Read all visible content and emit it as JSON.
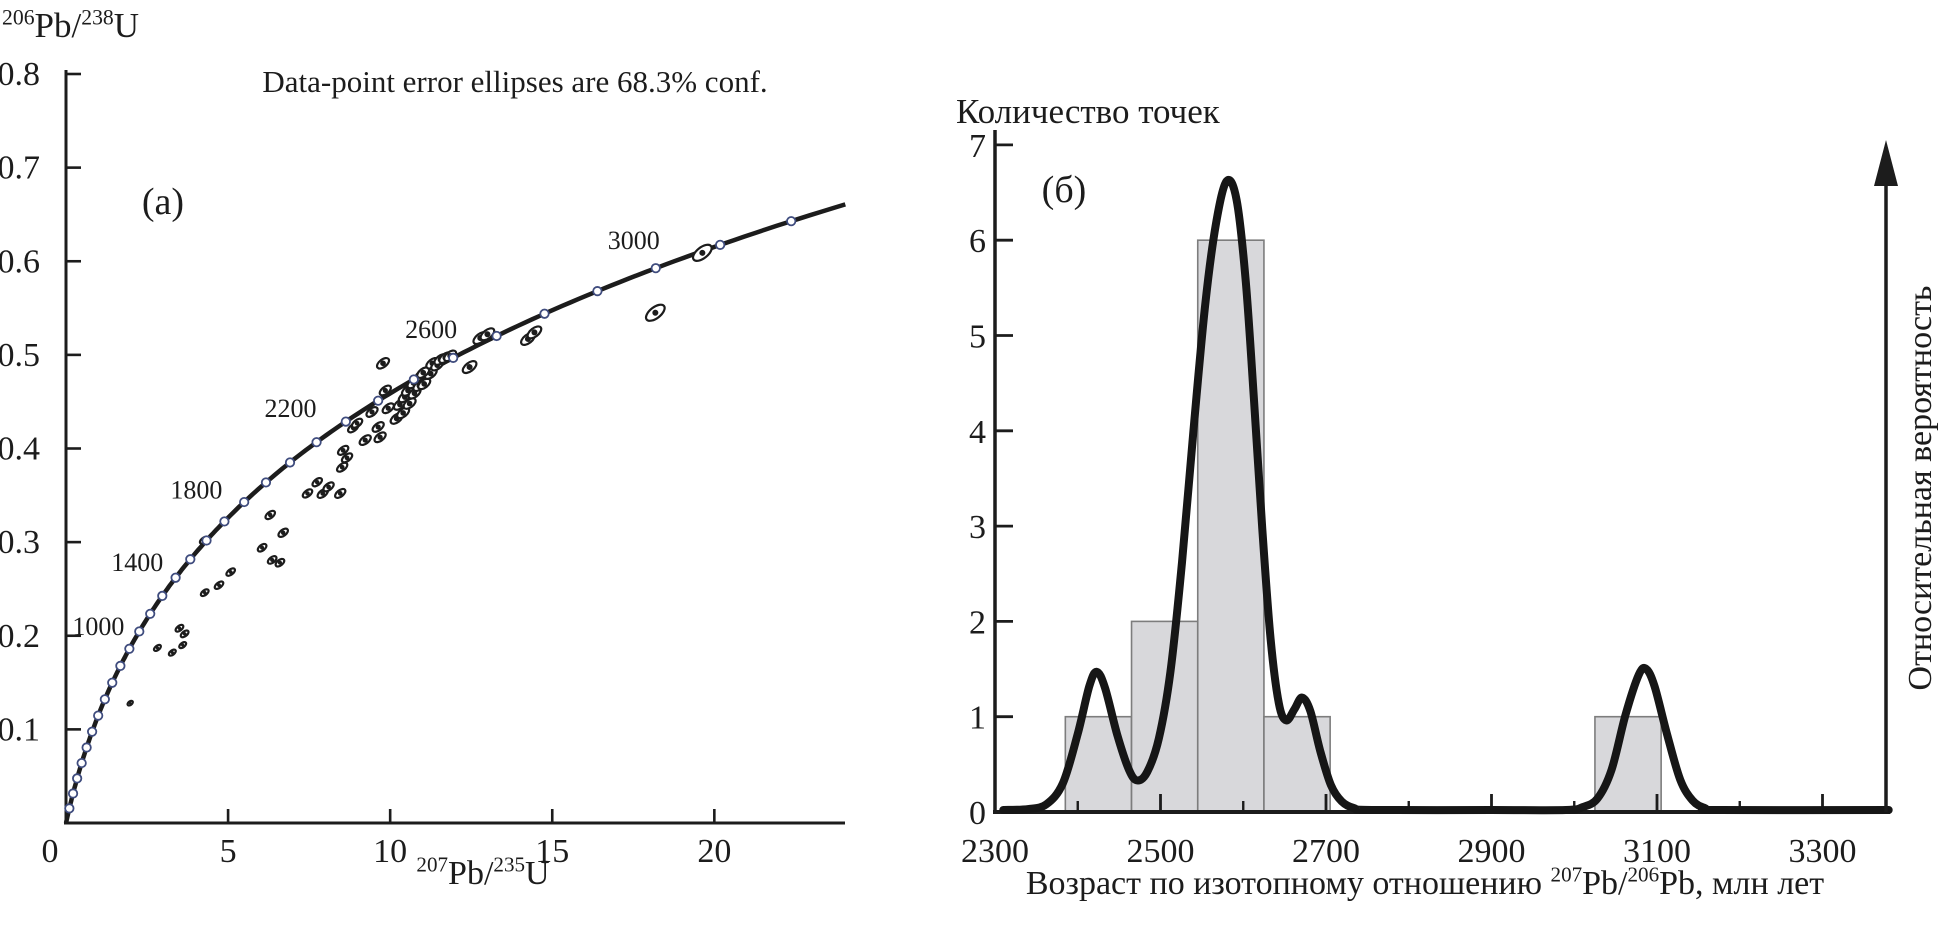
{
  "colors": {
    "ink": "#1c1c1c",
    "bar_fill": "#d8d8db",
    "bar_stroke": "#7d7d7d",
    "density_curve": "#161616",
    "marker_stroke": "#3f4c7e",
    "marker_fill": "#ffffff",
    "ellipse_fill": "#ffffff"
  },
  "chart_data": [
    {
      "type": "scatter",
      "panel_label": "(a)",
      "title": "Data-point error ellipses are 68.3% conf.",
      "ylabel_rich": [
        {
          "sup": "206"
        },
        {
          "t": "Pb/"
        },
        {
          "sup": "238"
        },
        {
          "t": "U"
        }
      ],
      "xlabel_rich": [
        {
          "sup": "207"
        },
        {
          "t": "Pb/"
        },
        {
          "sup": "235"
        },
        {
          "t": "U"
        }
      ],
      "xlim": [
        0,
        24
      ],
      "ylim": [
        0,
        0.8
      ],
      "x_ticks": [
        0,
        5,
        10,
        15,
        20
      ],
      "y_ticks": [
        0.1,
        0.2,
        0.3,
        0.4,
        0.5,
        0.6,
        0.7,
        0.8
      ],
      "concordia": {
        "lambda235_per_Ma": 0.00098485,
        "lambda238_per_Ma": 0.000155125,
        "t_start_Ma": 0,
        "t_end_Ma": 3270,
        "marker_first_Ma": 100,
        "marker_last_Ma": 3200,
        "marker_step_Ma": 100,
        "labeled_ages_Ma": [
          1000,
          1400,
          1800,
          2200,
          2600,
          3000
        ]
      },
      "ellipses_xy": [
        [
          1.98,
          0.128,
          3,
          1.8
        ],
        [
          2.82,
          0.187,
          4,
          2.2
        ],
        [
          3.28,
          0.182,
          4,
          2.2
        ],
        [
          3.6,
          0.19,
          4,
          2.2
        ],
        [
          3.5,
          0.208,
          4.5,
          2.4
        ],
        [
          3.66,
          0.202,
          4.5,
          2.4
        ],
        [
          4.25,
          0.302,
          4.5,
          2.4
        ],
        [
          4.28,
          0.246,
          4.5,
          2.4
        ],
        [
          4.72,
          0.254,
          5,
          2.6
        ],
        [
          5.08,
          0.268,
          5,
          2.6
        ],
        [
          6.05,
          0.294,
          5,
          2.8
        ],
        [
          6.36,
          0.281,
          5,
          2.8
        ],
        [
          6.6,
          0.278,
          5,
          2.8
        ],
        [
          6.3,
          0.329,
          5.5,
          3
        ],
        [
          6.7,
          0.31,
          5.5,
          3
        ],
        [
          7.45,
          0.352,
          5.5,
          3
        ],
        [
          7.75,
          0.364,
          5.5,
          3
        ],
        [
          7.92,
          0.352,
          6,
          3.2
        ],
        [
          8.1,
          0.359,
          6,
          3.2
        ],
        [
          8.46,
          0.352,
          6,
          3.2
        ],
        [
          8.52,
          0.38,
          6,
          3.2
        ],
        [
          8.67,
          0.39,
          6,
          3.2
        ],
        [
          8.55,
          0.398,
          6,
          3.2
        ],
        [
          8.86,
          0.422,
          6,
          3.2
        ],
        [
          8.98,
          0.427,
          6,
          3.2
        ],
        [
          9.23,
          0.409,
          6.5,
          3.5
        ],
        [
          9.44,
          0.439,
          6.5,
          3.5
        ],
        [
          9.63,
          0.423,
          6.5,
          3.5
        ],
        [
          9.69,
          0.412,
          6.5,
          3.5
        ],
        [
          9.85,
          0.462,
          6.5,
          3.5
        ],
        [
          9.94,
          0.443,
          6.5,
          3.5
        ],
        [
          9.78,
          0.491,
          7,
          3.8
        ],
        [
          10.2,
          0.432,
          7,
          3.8
        ],
        [
          10.4,
          0.438,
          7,
          3.8
        ],
        [
          10.3,
          0.447,
          7,
          3.8
        ],
        [
          10.45,
          0.455,
          7,
          3.8
        ],
        [
          10.6,
          0.448,
          7,
          3.8
        ],
        [
          10.55,
          0.462,
          7,
          3.8
        ],
        [
          10.75,
          0.459,
          7,
          3.8
        ],
        [
          10.72,
          0.47,
          7,
          3.8
        ],
        [
          10.9,
          0.467,
          7,
          3.8
        ],
        [
          10.95,
          0.478,
          7,
          3.8
        ],
        [
          11.05,
          0.469,
          7,
          3.8
        ],
        [
          11.1,
          0.482,
          7,
          3.8
        ],
        [
          11.25,
          0.48,
          7,
          3.8
        ],
        [
          11.02,
          0.481,
          7,
          3.8
        ],
        [
          11.3,
          0.491,
          7,
          3.8
        ],
        [
          11.45,
          0.489,
          7,
          3.8
        ],
        [
          11.55,
          0.495,
          7,
          3.8
        ],
        [
          11.7,
          0.497,
          7,
          3.8
        ],
        [
          11.85,
          0.499,
          7,
          3.8
        ],
        [
          12.45,
          0.487,
          8,
          4.2
        ],
        [
          12.78,
          0.518,
          8,
          4.2
        ],
        [
          13.0,
          0.522,
          8,
          4.2
        ],
        [
          14.25,
          0.517,
          8,
          4.2
        ],
        [
          14.45,
          0.524,
          8,
          4.2
        ],
        [
          18.18,
          0.545,
          11,
          5.5
        ],
        [
          19.63,
          0.609,
          11,
          5.5
        ]
      ]
    },
    {
      "type": "histogram+density",
      "panel_label": "(б)",
      "ylabel": "Количество точек",
      "right_axis_label": "Относительная вероятность",
      "xlabel_rich": [
        {
          "t": "Возраст по изотопному отношению "
        },
        {
          "sup": "207"
        },
        {
          "t": "Pb/"
        },
        {
          "sup": "206"
        },
        {
          "t": "Pb, млн лет"
        }
      ],
      "xlim": [
        2300,
        3390
      ],
      "ylim": [
        0,
        7.2
      ],
      "x_ticks_labeled": [
        2300,
        2500,
        2700,
        2900,
        3100,
        3300
      ],
      "x_ticks_minor": [
        2400,
        2600,
        2800,
        3000,
        3200
      ],
      "y_ticks": [
        0,
        1,
        2,
        3,
        4,
        5,
        6,
        7
      ],
      "bin_width_Ma": 80,
      "bars": [
        {
          "from": 2385,
          "to": 2465,
          "count": 1
        },
        {
          "from": 2465,
          "to": 2545,
          "count": 2
        },
        {
          "from": 2545,
          "to": 2625,
          "count": 6
        },
        {
          "from": 2625,
          "to": 2705,
          "count": 1
        },
        {
          "from": 3025,
          "to": 3105,
          "count": 1
        }
      ],
      "density_curve": [
        [
          2310,
          0
        ],
        [
          2340,
          0.01
        ],
        [
          2362,
          0.06
        ],
        [
          2382,
          0.28
        ],
        [
          2400,
          0.8
        ],
        [
          2414,
          1.3
        ],
        [
          2423,
          1.45
        ],
        [
          2433,
          1.28
        ],
        [
          2448,
          0.78
        ],
        [
          2462,
          0.42
        ],
        [
          2472,
          0.31
        ],
        [
          2484,
          0.4
        ],
        [
          2498,
          0.75
        ],
        [
          2512,
          1.45
        ],
        [
          2526,
          2.6
        ],
        [
          2540,
          4.0
        ],
        [
          2554,
          5.3
        ],
        [
          2567,
          6.15
        ],
        [
          2580,
          6.6
        ],
        [
          2592,
          6.4
        ],
        [
          2603,
          5.55
        ],
        [
          2613,
          4.3
        ],
        [
          2623,
          2.95
        ],
        [
          2633,
          1.8
        ],
        [
          2643,
          1.12
        ],
        [
          2652,
          0.94
        ],
        [
          2662,
          1.06
        ],
        [
          2671,
          1.18
        ],
        [
          2681,
          1.04
        ],
        [
          2693,
          0.62
        ],
        [
          2706,
          0.26
        ],
        [
          2719,
          0.09
        ],
        [
          2734,
          0.02
        ],
        [
          2755,
          0
        ],
        [
          2900,
          0
        ],
        [
          2990,
          0
        ],
        [
          3010,
          0.03
        ],
        [
          3028,
          0.12
        ],
        [
          3045,
          0.42
        ],
        [
          3062,
          1.0
        ],
        [
          3078,
          1.42
        ],
        [
          3087,
          1.48
        ],
        [
          3097,
          1.3
        ],
        [
          3112,
          0.8
        ],
        [
          3128,
          0.32
        ],
        [
          3143,
          0.1
        ],
        [
          3158,
          0.02
        ],
        [
          3175,
          0
        ],
        [
          3380,
          0
        ]
      ]
    }
  ]
}
